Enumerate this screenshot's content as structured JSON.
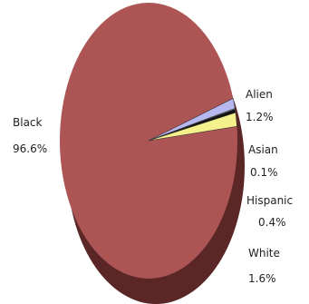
{
  "chart_data": {
    "type": "pie",
    "title": "",
    "slices": [
      {
        "name": "Black",
        "value": 96.6,
        "label": "96.6%",
        "color": "#ad5555",
        "dark": "#5a2626"
      },
      {
        "name": "Alien",
        "value": 1.2,
        "label": "1.2%",
        "color": "#b8b8f0",
        "dark": "#5c5c80"
      },
      {
        "name": "Asian",
        "value": 0.1,
        "label": "0.1%",
        "color": "#cfe8ee",
        "dark": "#687478"
      },
      {
        "name": "Hispanic",
        "value": 0.4,
        "label": "0.4%",
        "color": "#111111",
        "dark": "#000000"
      },
      {
        "name": "White",
        "value": 1.6,
        "label": "1.6%",
        "color": "#f4f08c",
        "dark": "#7a7846"
      }
    ],
    "legend": "none",
    "labels": "outside"
  }
}
